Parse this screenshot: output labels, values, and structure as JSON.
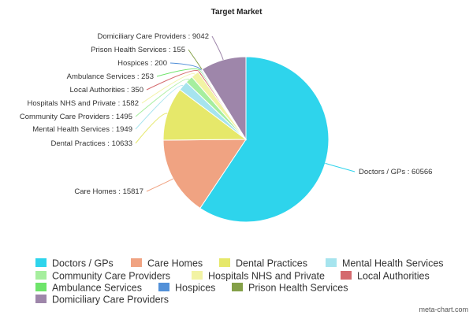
{
  "chart_data": {
    "type": "pie",
    "title": "Target Market",
    "slices": [
      {
        "name": "Doctors / GPs",
        "value": 60566,
        "color": "#2ed4ec",
        "label": "Doctors / GPs : 60566"
      },
      {
        "name": "Care Homes",
        "value": 15817,
        "color": "#f0a382",
        "label": "Care Homes : 15817"
      },
      {
        "name": "Dental Practices",
        "value": 10633,
        "color": "#e6e86a",
        "label": "Dental Practices : 10633"
      },
      {
        "name": "Mental Health Services",
        "value": 1949,
        "color": "#a6e4ee",
        "label": "Mental Health Services : 1949"
      },
      {
        "name": "Community Care Providers",
        "value": 1495,
        "color": "#a6ee9e",
        "label": "Community Care Providers : 1495"
      },
      {
        "name": "Hospitals NHS and Private",
        "value": 1582,
        "color": "#f2f3a4",
        "label": "Hospitals NHS and Private : 1582"
      },
      {
        "name": "Local Authorities",
        "value": 350,
        "color": "#d46a6e",
        "label": "Local Authorities : 350"
      },
      {
        "name": "Ambulance Services",
        "value": 253,
        "color": "#6ee46a",
        "label": "Ambulance Services : 253"
      },
      {
        "name": "Hospices",
        "value": 200,
        "color": "#5290d8",
        "label": "Hospices : 200"
      },
      {
        "name": "Prison Health Services",
        "value": 155,
        "color": "#84a048",
        "label": "Prison Health Services : 155"
      },
      {
        "name": "Domiciliary Care Providers",
        "value": 9042,
        "color": "#9e86aa",
        "label": "Domiciliary Care Providers : 9042"
      }
    ],
    "legend_position": "bottom"
  },
  "credit": "meta-chart.com"
}
